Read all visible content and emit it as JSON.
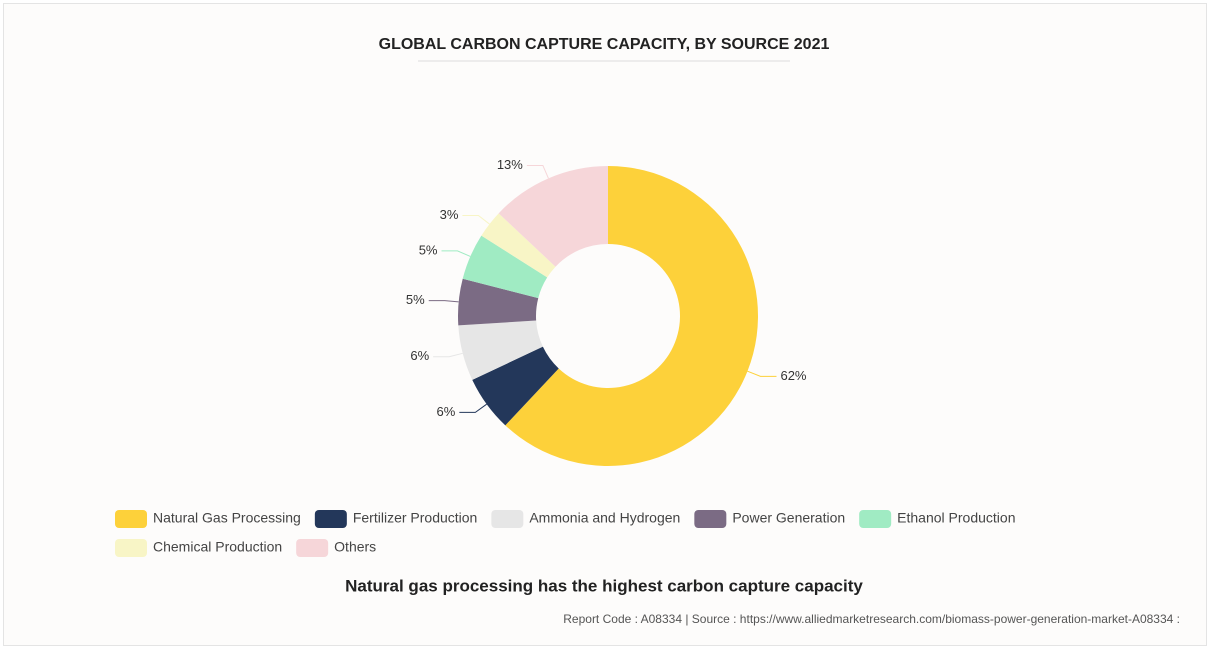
{
  "chart_data": {
    "type": "pie",
    "title": "GLOBAL CARBON CAPTURE CAPACITY, BY SOURCE 2021",
    "categories": [
      "Natural Gas Processing",
      "Fertilizer Production",
      "Ammonia and Hydrogen",
      "Power Generation",
      "Ethanol Production",
      "Chemical Production",
      "Others"
    ],
    "values": [
      62,
      6,
      6,
      5,
      5,
      3,
      13
    ],
    "value_labels": [
      "62%",
      "6%",
      "6%",
      "5%",
      "5%",
      "3%",
      "13%"
    ],
    "colors": [
      "#fdd13a",
      "#23375a",
      "#e6e6e6",
      "#7b6b84",
      "#a0ebc3",
      "#f8f5c6",
      "#f6d6d9"
    ],
    "donut": true,
    "caption": "Natural gas processing has the highest carbon capture capacity",
    "source": "Report Code : A08334  |  Source : https://www.alliedmarketresearch.com/biomass-power-generation-market-A08334 :"
  }
}
